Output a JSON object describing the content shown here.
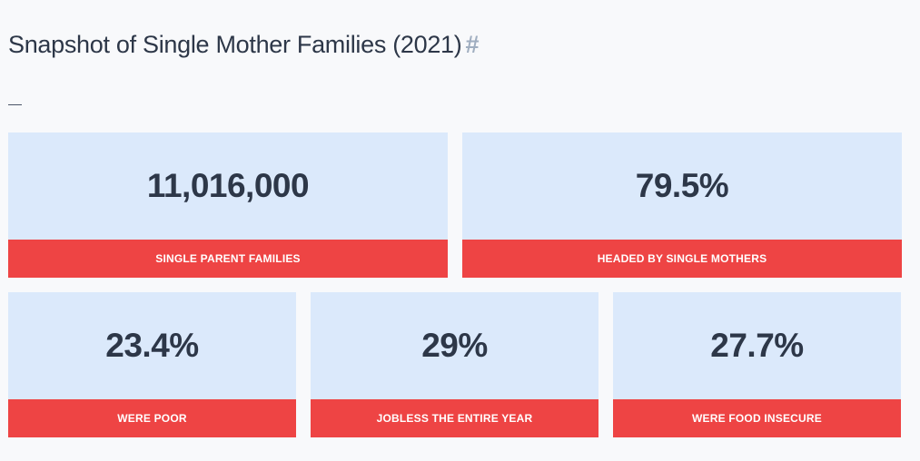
{
  "page": {
    "title": "Snapshot of Single Mother Families (2021)",
    "anchor": "#"
  },
  "stats": [
    {
      "value": "11,016,000",
      "label": "SINGLE PARENT FAMILIES"
    },
    {
      "value": "79.5%",
      "label": "HEADED BY SINGLE MOTHERS"
    },
    {
      "value": "23.4%",
      "label": "WERE POOR"
    },
    {
      "value": "29%",
      "label": "JOBLESS THE ENTIRE YEAR"
    },
    {
      "value": "27.7%",
      "label": "WERE FOOD INSECURE"
    }
  ],
  "colors": {
    "card_bg": "#dbe9fb",
    "label_bg": "#ee4444",
    "value_text": "#2d3748",
    "anchor": "#a0aec0"
  }
}
